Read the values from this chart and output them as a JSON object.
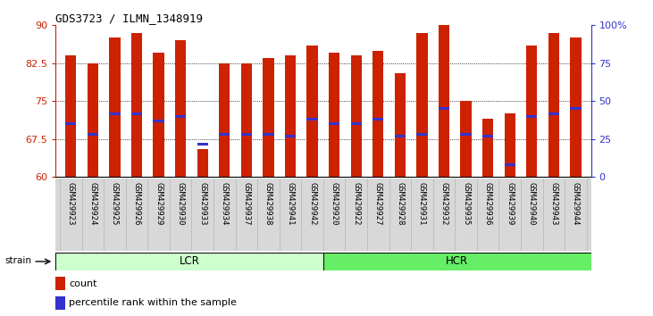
{
  "title": "GDS3723 / ILMN_1348919",
  "samples": [
    "GSM429923",
    "GSM429924",
    "GSM429925",
    "GSM429926",
    "GSM429929",
    "GSM429930",
    "GSM429933",
    "GSM429934",
    "GSM429937",
    "GSM429938",
    "GSM429941",
    "GSM429942",
    "GSM429920",
    "GSM429922",
    "GSM429927",
    "GSM429928",
    "GSM429931",
    "GSM429932",
    "GSM429935",
    "GSM429936",
    "GSM429939",
    "GSM429940",
    "GSM429943",
    "GSM429944"
  ],
  "lcr_count": 12,
  "hcr_count": 12,
  "bar_values": [
    84.0,
    82.5,
    87.5,
    88.5,
    84.5,
    87.0,
    65.5,
    82.5,
    82.5,
    83.5,
    84.0,
    86.0,
    84.5,
    84.0,
    85.0,
    80.5,
    88.5,
    90.0,
    75.0,
    71.5,
    72.5,
    86.0,
    88.5,
    87.5
  ],
  "blue_dot_values": [
    70.5,
    68.5,
    72.5,
    72.5,
    71.0,
    72.0,
    66.5,
    68.5,
    68.5,
    68.5,
    68.0,
    71.5,
    70.5,
    70.5,
    71.5,
    68.0,
    68.5,
    73.5,
    68.5,
    68.0,
    62.5,
    72.0,
    72.5,
    73.5
  ],
  "ylim_left": [
    60,
    90
  ],
  "yticks_left": [
    60,
    67.5,
    75,
    82.5,
    90
  ],
  "ylim_right": [
    0,
    100
  ],
  "ytick_labels_right": [
    "0",
    "25",
    "50",
    "75",
    "100%"
  ],
  "ytick_vals_right": [
    0,
    25,
    50,
    75,
    100
  ],
  "bar_color": "#cc2200",
  "dot_color": "#3333cc",
  "bg_color": "#ffffff",
  "lcr_color": "#ccffcc",
  "hcr_color": "#66ee66",
  "legend_count": "count",
  "legend_pct": "percentile rank within the sample"
}
